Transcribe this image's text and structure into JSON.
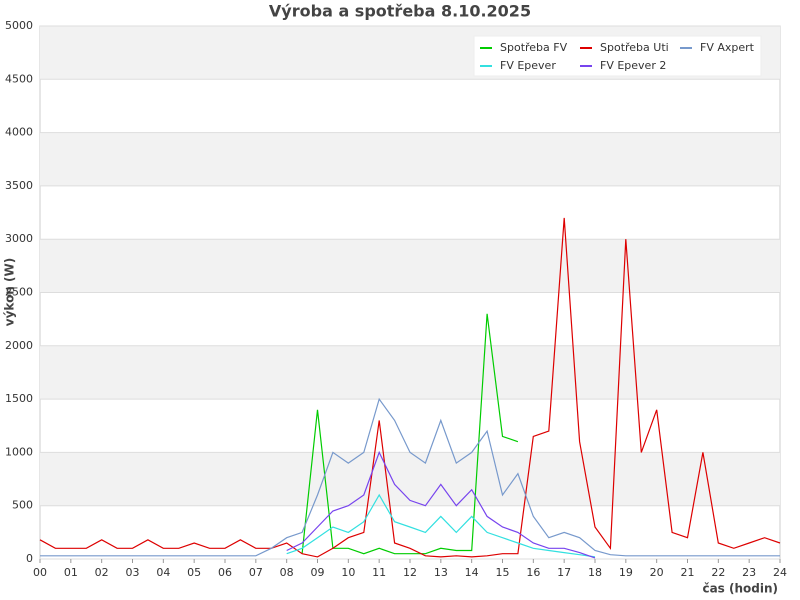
{
  "chart_data": {
    "type": "line",
    "title": "Výroba a spotřeba 8.10.2025",
    "x_label": "čas (hodin)",
    "y_label": "výkon (W)",
    "x": [
      0,
      0.5,
      1,
      1.5,
      2,
      2.5,
      3,
      3.5,
      4,
      4.5,
      5,
      5.5,
      6,
      6.5,
      7,
      7.5,
      8,
      8.5,
      9,
      9.5,
      10,
      10.5,
      11,
      11.5,
      12,
      12.5,
      13,
      13.5,
      14,
      14.5,
      15,
      15.5,
      16,
      16.5,
      17,
      17.5,
      18,
      18.5,
      19,
      19.5,
      20,
      20.5,
      21,
      21.5,
      22,
      22.5,
      23,
      23.5,
      24
    ],
    "series": [
      {
        "name": "Spotřeba FV",
        "color": "#00cc00",
        "values": [
          null,
          null,
          null,
          null,
          null,
          null,
          null,
          null,
          null,
          null,
          null,
          null,
          null,
          null,
          null,
          null,
          null,
          50,
          1400,
          100,
          100,
          50,
          100,
          50,
          50,
          50,
          100,
          80,
          80,
          2300,
          1150,
          1100,
          null,
          null,
          null,
          null,
          null,
          null,
          null,
          null,
          null,
          null,
          null,
          null,
          null,
          null,
          null,
          null,
          null
        ]
      },
      {
        "name": "Spotřeba Uti",
        "color": "#dd0000",
        "values": [
          180,
          100,
          100,
          100,
          180,
          100,
          100,
          180,
          100,
          100,
          150,
          100,
          100,
          180,
          100,
          100,
          150,
          50,
          20,
          100,
          200,
          250,
          1300,
          150,
          100,
          30,
          20,
          30,
          20,
          30,
          50,
          50,
          1150,
          1200,
          3200,
          1100,
          300,
          100,
          3000,
          1000,
          1400,
          250,
          200,
          1000,
          150,
          100,
          150,
          200,
          150
        ]
      },
      {
        "name": "FV Axpert",
        "color": "#7799cc",
        "values": [
          30,
          30,
          30,
          30,
          30,
          30,
          30,
          30,
          30,
          30,
          30,
          30,
          30,
          30,
          30,
          100,
          200,
          250,
          600,
          1000,
          900,
          1000,
          1500,
          1300,
          1000,
          900,
          1300,
          900,
          1000,
          1200,
          600,
          800,
          400,
          200,
          250,
          200,
          80,
          40,
          30,
          30,
          30,
          30,
          30,
          30,
          30,
          30,
          30,
          30,
          30
        ]
      },
      {
        "name": "FV Epever",
        "color": "#33e0e0",
        "values": [
          null,
          null,
          null,
          null,
          null,
          null,
          null,
          null,
          null,
          null,
          null,
          null,
          null,
          null,
          null,
          null,
          50,
          100,
          200,
          300,
          250,
          350,
          600,
          350,
          300,
          250,
          400,
          250,
          400,
          250,
          200,
          150,
          100,
          80,
          60,
          40,
          20,
          null,
          null,
          null,
          null,
          null,
          null,
          null,
          null,
          null,
          null,
          null,
          null
        ]
      },
      {
        "name": "FV Epever 2",
        "color": "#7744ee",
        "values": [
          null,
          null,
          null,
          null,
          null,
          null,
          null,
          null,
          null,
          null,
          null,
          null,
          null,
          null,
          null,
          null,
          80,
          150,
          300,
          450,
          500,
          600,
          1000,
          700,
          550,
          500,
          700,
          500,
          650,
          400,
          300,
          250,
          150,
          100,
          100,
          60,
          10,
          null,
          null,
          null,
          null,
          null,
          null,
          null,
          null,
          null,
          null,
          null,
          null
        ]
      }
    ],
    "xlim": [
      0,
      24
    ],
    "xticks": [
      {
        "value": 0,
        "label": "00"
      },
      {
        "value": 1,
        "label": "01"
      },
      {
        "value": 2,
        "label": "02"
      },
      {
        "value": 3,
        "label": "03"
      },
      {
        "value": 4,
        "label": "04"
      },
      {
        "value": 5,
        "label": "05"
      },
      {
        "value": 6,
        "label": "06"
      },
      {
        "value": 7,
        "label": "07"
      },
      {
        "value": 8,
        "label": "08"
      },
      {
        "value": 9,
        "label": "09"
      },
      10,
      11,
      12,
      13,
      14,
      15,
      16,
      17,
      18,
      19,
      20,
      21,
      22,
      23,
      24
    ],
    "ylim": [
      0,
      5000
    ],
    "yticks": [
      0,
      500,
      1000,
      1500,
      2000,
      2500,
      3000,
      3500,
      4000,
      4500,
      5000
    ],
    "grid": true,
    "legend": "top-right"
  }
}
